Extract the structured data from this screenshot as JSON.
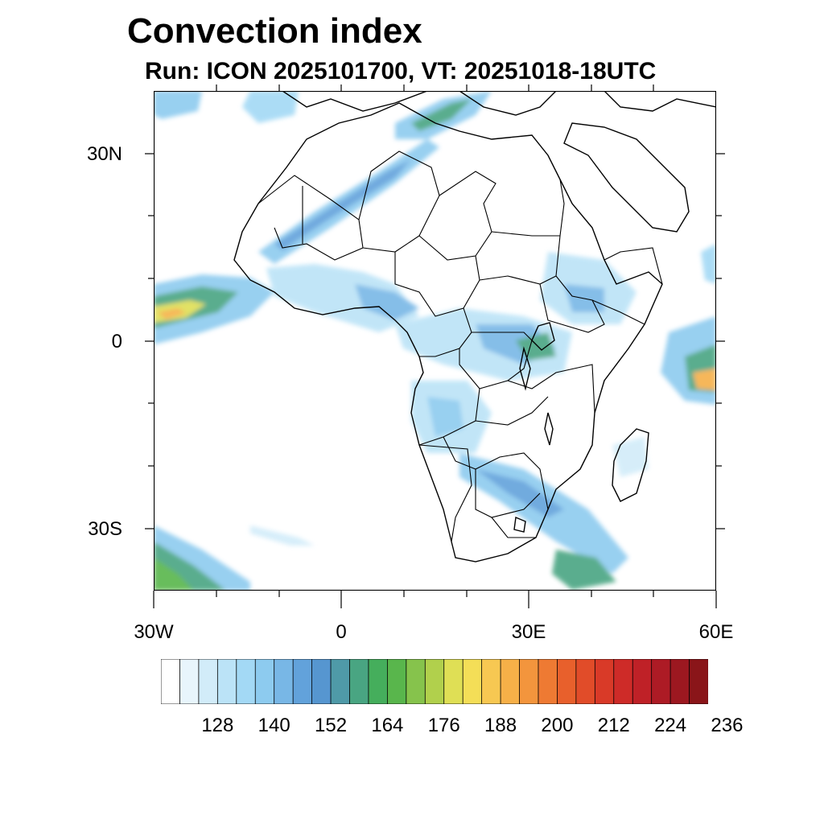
{
  "title": "Convection index",
  "subtitle": "Run: ICON 2025101700,  VT: 20251018-18UTC",
  "map": {
    "lat_labels": [
      "30N",
      "0",
      "30S"
    ],
    "lon_labels": [
      "30W",
      "0",
      "30E",
      "60E"
    ],
    "extent": {
      "lon_min": -30,
      "lon_max": 60,
      "lat_min": -40,
      "lat_max": 40
    }
  },
  "colorbar": {
    "colors": [
      "#ffffff",
      "#e8f5fc",
      "#d2ecf9",
      "#bbe3f7",
      "#a3d9f5",
      "#8dcbef",
      "#78b7e6",
      "#62a2db",
      "#5696d0",
      "#4f9aa8",
      "#49a582",
      "#45ae5c",
      "#59b64c",
      "#86c34c",
      "#b1d04c",
      "#dfdf55",
      "#f4de57",
      "#f7c852",
      "#f6b048",
      "#f3953d",
      "#ee7a33",
      "#e8602c",
      "#e14c29",
      "#d93a28",
      "#ce2b28",
      "#bf2127",
      "#ad1b25",
      "#9c1820",
      "#8a1519"
    ],
    "labels": [
      "128",
      "140",
      "152",
      "164",
      "176",
      "188",
      "200",
      "212",
      "224",
      "236"
    ]
  }
}
